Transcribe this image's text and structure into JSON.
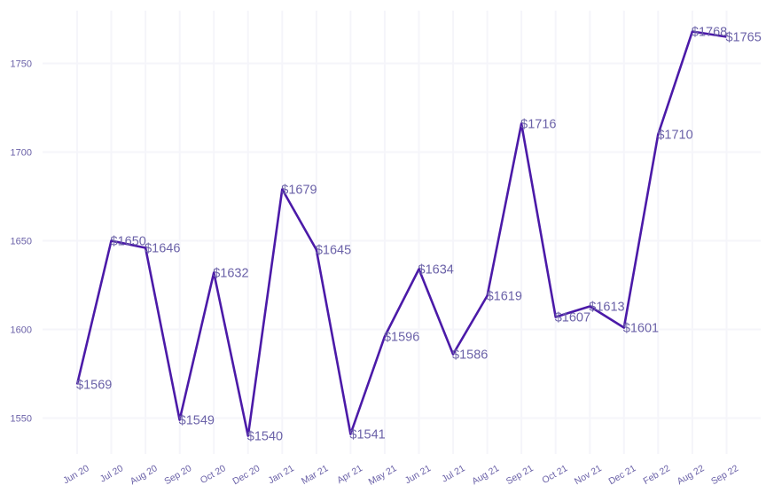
{
  "chart_data": {
    "type": "line",
    "categories": [
      "Jun 20",
      "Jul 20",
      "Aug 20",
      "Sep 20",
      "Oct 20",
      "Dec 20",
      "Jan 21",
      "Mar 21",
      "Apr 21",
      "May 21",
      "Jun 21",
      "Jul 21",
      "Aug 21",
      "Sep 21",
      "Oct 21",
      "Nov 21",
      "Dec 21",
      "Feb 22",
      "Aug 22",
      "Sep 22"
    ],
    "values": [
      1569,
      1650,
      1646,
      1549,
      1632,
      1540,
      1679,
      1645,
      1541,
      1596,
      1634,
      1586,
      1619,
      1716,
      1607,
      1613,
      1601,
      1710,
      1768,
      1765
    ],
    "data_labels": [
      "$1569",
      "$1650",
      "$1646",
      "$1549",
      "$1632",
      "$1540",
      "$1679",
      "$1645",
      "$1541",
      "$1596",
      "$1634",
      "$1586",
      "$1619",
      "$1716",
      "$1607",
      "$1613",
      "$1601",
      "$1710",
      "$1768",
      "$1765"
    ],
    "y_ticks": [
      1550,
      1600,
      1650,
      1700,
      1750
    ],
    "ylim": [
      1525,
      1780
    ],
    "grid": true,
    "colors": {
      "line": "#4b1aa8",
      "text": "#6b62a8",
      "grid": "#f5f5fa"
    }
  }
}
